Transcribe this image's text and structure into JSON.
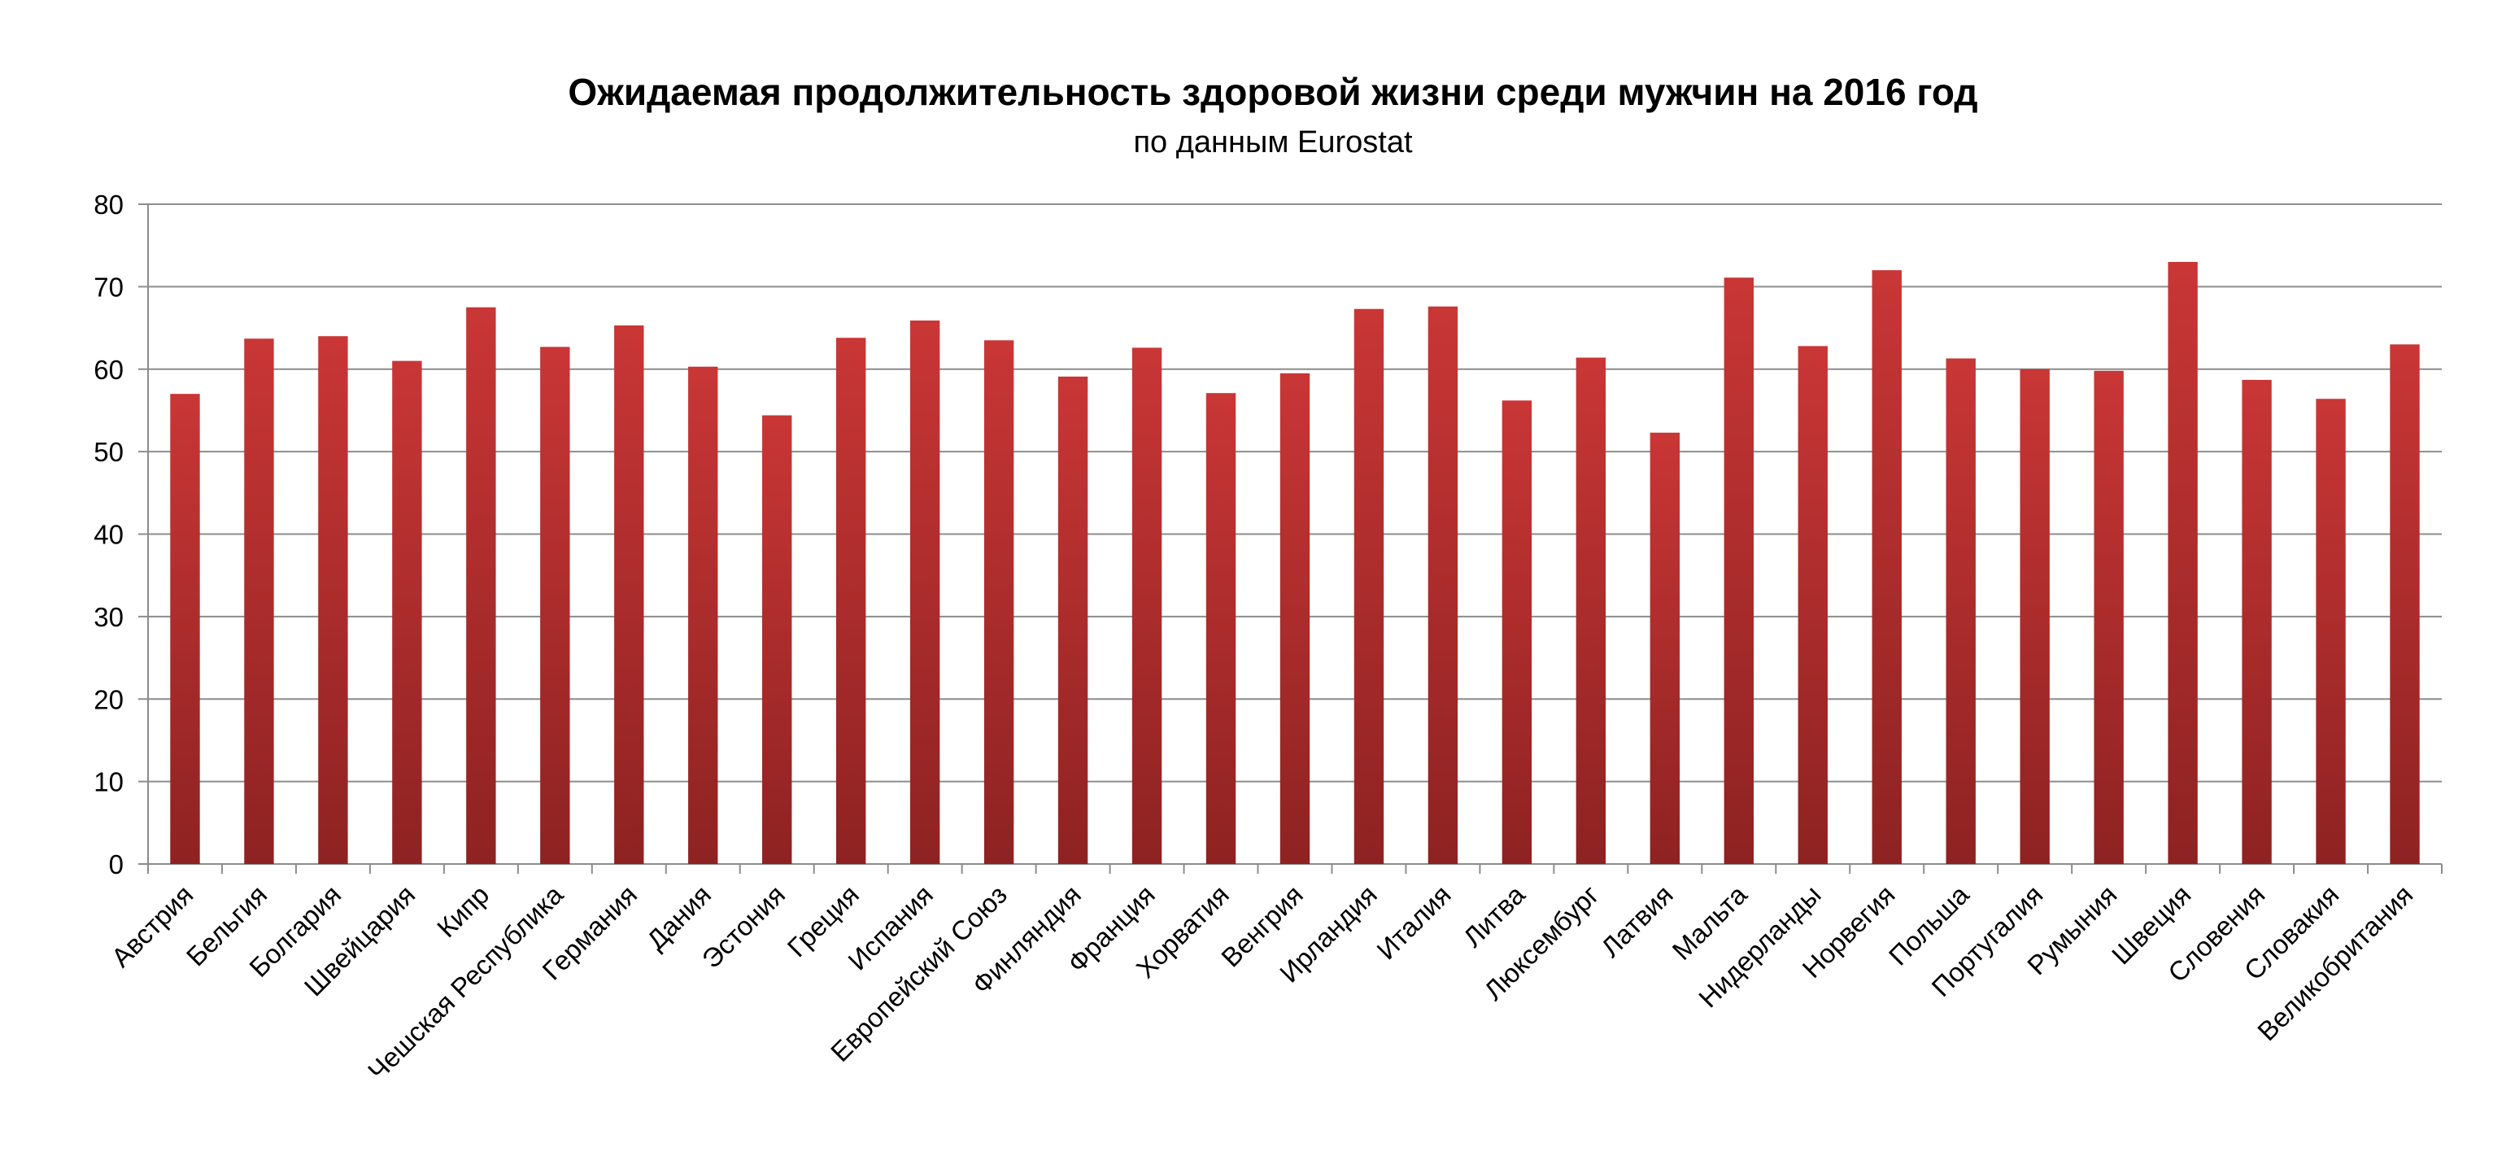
{
  "chart_data": {
    "type": "bar",
    "title": "Ожидаемая продолжительность здоровой жизни среди мужчин на 2016 год",
    "subtitle": "по данным Eurostat",
    "xlabel": "",
    "ylabel": "",
    "ylim": [
      0,
      80
    ],
    "yticks": [
      "0",
      "10",
      "20",
      "30",
      "40",
      "50",
      "60",
      "70",
      "80"
    ],
    "grid": true,
    "legend": "none",
    "bar_color": "#c93636",
    "bar_color_dark": "#8e2222",
    "categories": [
      "Австрия",
      "Бельгия",
      "Болгария",
      "Швейцария",
      "Кипр",
      "Чешская Республика",
      "Германия",
      "Дания",
      "Эстония",
      "Греция",
      "Испания",
      "Европейский Союз",
      "Финляндия",
      "Франция",
      "Хорватия",
      "Венгрия",
      "Ирландия",
      "Италия",
      "Литва",
      "Люксембург",
      "Латвия",
      "Мальта",
      "Нидерланды",
      "Норвегия",
      "Польша",
      "Португалия",
      "Румыния",
      "Швеция",
      "Словения",
      "Словакия",
      "Великобритания"
    ],
    "values": [
      57.0,
      63.7,
      64.0,
      61.0,
      67.5,
      62.7,
      65.3,
      60.3,
      54.4,
      63.8,
      65.9,
      63.5,
      59.1,
      62.6,
      57.1,
      59.5,
      67.3,
      67.6,
      56.2,
      61.4,
      52.3,
      71.1,
      62.8,
      72.0,
      61.3,
      60.0,
      59.8,
      73.0,
      58.7,
      56.4,
      63.0
    ]
  }
}
